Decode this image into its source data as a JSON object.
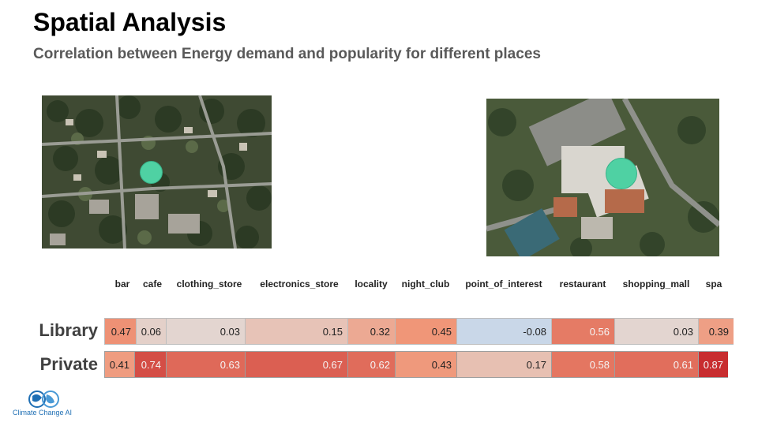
{
  "slide": {
    "title": "Spatial Analysis",
    "subtitle": "Correlation between Energy demand and popularity for different places"
  },
  "images": [
    {
      "name": "library-aerial-view",
      "marker_color": "#4fd1a3"
    },
    {
      "name": "private-aerial-view",
      "marker_color": "#4fd1a3"
    }
  ],
  "heatmap": {
    "columns": [
      "bar",
      "cafe",
      "clothing_store",
      "electronics_store",
      "locality",
      "night_club",
      "point_of_interest",
      "restaurant",
      "shopping_mall",
      "spa"
    ],
    "rows": [
      {
        "label": "Library",
        "values": [
          "0.47",
          "0.06",
          "0.03",
          "0.15",
          "0.32",
          "0.45",
          "-0.08",
          "0.56",
          "0.03",
          "0.39"
        ]
      },
      {
        "label": "Private",
        "values": [
          "0.41",
          "0.74",
          "0.63",
          "0.67",
          "0.62",
          "0.43",
          "0.17",
          "0.58",
          "0.61",
          "0.87"
        ]
      }
    ],
    "colors": {
      "negative": "#c9d7e8",
      "neutral": "#e2d9d6",
      "high": "#c5262a"
    }
  },
  "logo": {
    "text": "Climate Change AI",
    "color": "#1f6fb4"
  }
}
